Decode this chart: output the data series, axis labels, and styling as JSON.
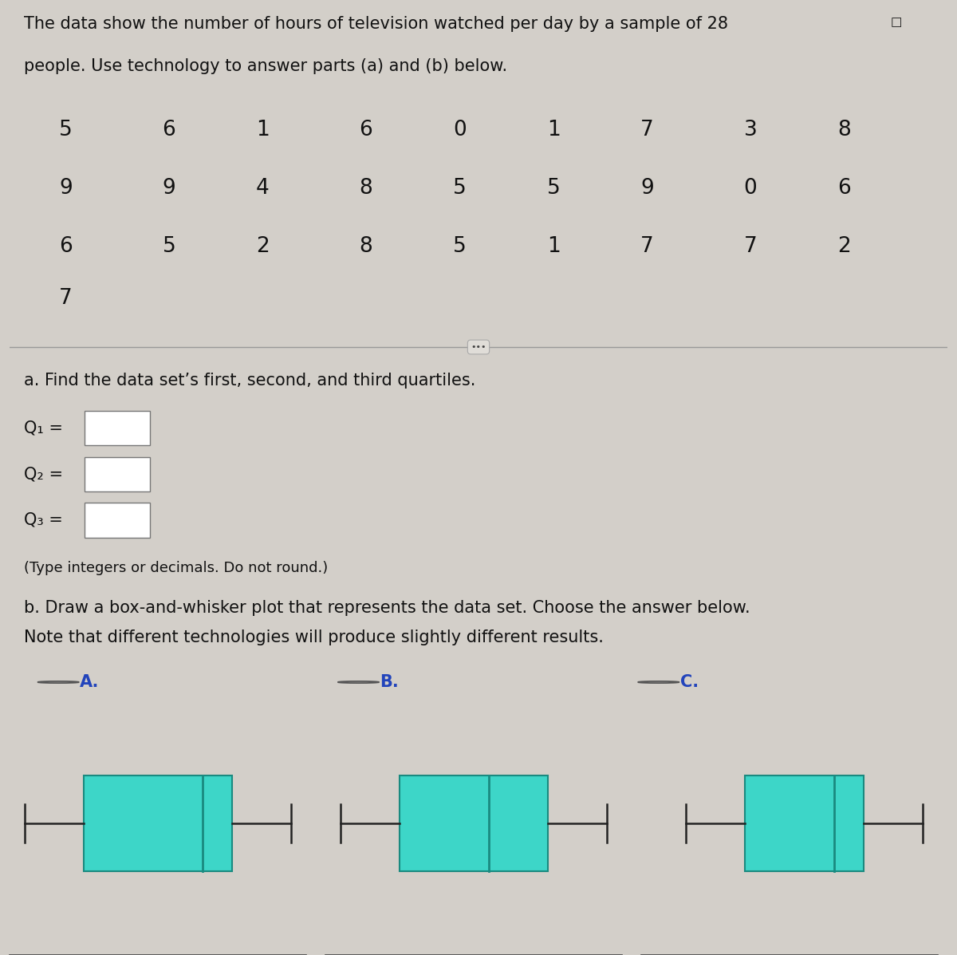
{
  "title_text": "The data show the number of hours of television watched per day by a sample of 28",
  "title_text2": "people. Use technology to answer parts (a) and (b) below.",
  "data_grid": [
    [
      5,
      6,
      1,
      6,
      0,
      1,
      7,
      3,
      8
    ],
    [
      9,
      9,
      4,
      8,
      5,
      5,
      9,
      0,
      6
    ],
    [
      6,
      5,
      2,
      8,
      5,
      1,
      7,
      7,
      2
    ],
    [
      7,
      null,
      null,
      null,
      null,
      null,
      null,
      null,
      null
    ]
  ],
  "section_a_text": "a. Find the data set’s first, second, and third quartiles.",
  "q1_label": "Q₁ =",
  "q2_label": "Q₂ =",
  "q3_label": "Q₃ =",
  "hint_text": "(Type integers or decimals. Do not round.)",
  "section_b_text": "b. Draw a box-and-whisker plot that represents the data set. Choose the answer below.",
  "section_b_text2": "Note that different technologies will produce slightly different results.",
  "option_labels": [
    "A.",
    "B.",
    "C."
  ],
  "boxplots": [
    {
      "min": 0,
      "q1": 2,
      "median": 6,
      "q3": 7,
      "max": 9
    },
    {
      "min": 0,
      "q1": 2,
      "median": 5,
      "q3": 7,
      "max": 9
    },
    {
      "min": 1,
      "q1": 3,
      "median": 6,
      "q3": 7,
      "max": 9
    }
  ],
  "box_color": "#3dd6c8",
  "box_edge_color": "#1a8a80",
  "bg_color": "#d3cfc9",
  "text_color": "#111111",
  "axis_range": [
    -0.3,
    9.3
  ],
  "axis_ticks": [
    0,
    3,
    6,
    9
  ]
}
